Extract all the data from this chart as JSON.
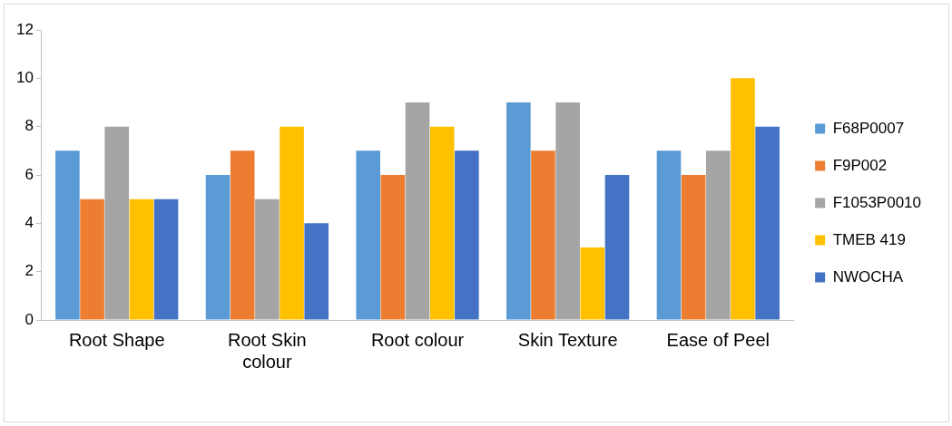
{
  "chart_data": {
    "type": "bar",
    "categories": [
      "Root Shape",
      "Root Skin colour",
      "Root colour",
      "Skin Texture",
      "Ease of Peel"
    ],
    "series": [
      {
        "name": "F68P0007",
        "color": "#5b9bd5",
        "values": [
          7,
          6,
          7,
          9,
          7
        ]
      },
      {
        "name": "F9P002",
        "color": "#ed7d31",
        "values": [
          5,
          7,
          6,
          7,
          6
        ]
      },
      {
        "name": "F1053P0010",
        "color": "#a5a5a5",
        "values": [
          8,
          5,
          9,
          9,
          7
        ]
      },
      {
        "name": "TMEB 419",
        "color": "#ffc000",
        "values": [
          5,
          8,
          8,
          3,
          10
        ]
      },
      {
        "name": "NWOCHA",
        "color": "#4472c4",
        "values": [
          5,
          4,
          7,
          6,
          8
        ]
      }
    ],
    "ylim": [
      0,
      12
    ],
    "yticks": [
      0,
      2,
      4,
      6,
      8,
      10,
      12
    ],
    "grid": false,
    "legend": "right"
  }
}
